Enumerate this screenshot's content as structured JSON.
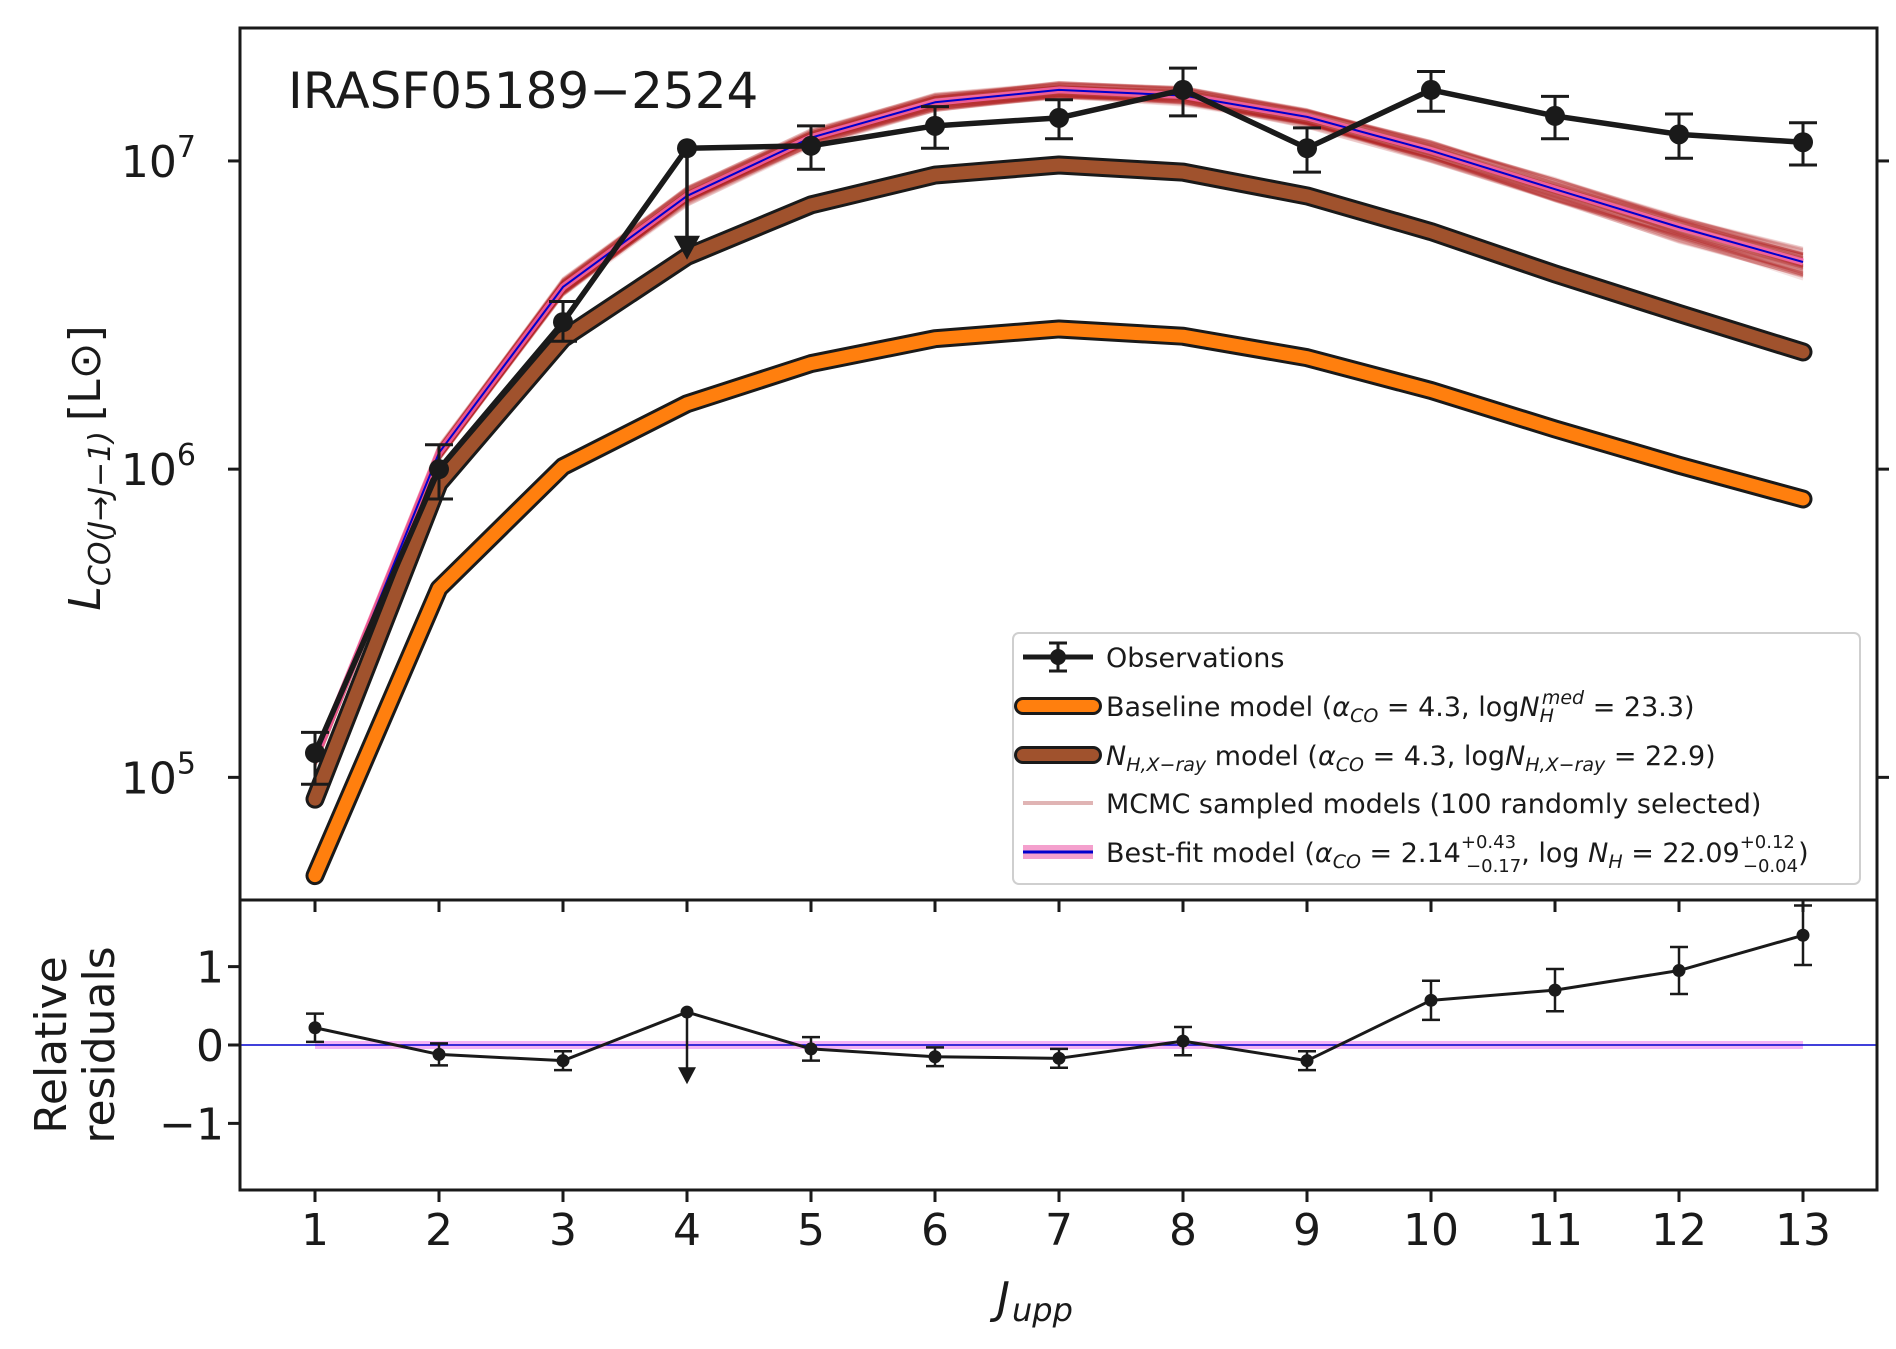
{
  "chart_data": [
    {
      "type": "line",
      "panel": "top",
      "yscale": "log",
      "annotation": "IRASF05189−2524",
      "xlabel": "J",
      "xlabel_sub": "upp",
      "ylabel": "L",
      "ylabel_sub": "CO(J→J−1)",
      "ylabel_unit": "[L⊙]",
      "ylim": [
        40000,
        27000000
      ],
      "yticks": [
        100000,
        1000000,
        10000000
      ],
      "yticks_mantissa": [
        "10",
        "10",
        "10"
      ],
      "yticks_exp": [
        "5",
        "6",
        "7"
      ],
      "x": [
        1,
        2,
        3,
        4,
        5,
        6,
        7,
        8,
        9,
        10,
        11,
        12,
        13
      ],
      "series": [
        {
          "name": "Observations",
          "color": "#1a1a1a",
          "values": [
            120000,
            1000000,
            3000000,
            11000000,
            11200000,
            13000000,
            13800000,
            17000000,
            11000000,
            17000000,
            14000000,
            12200000,
            11500000
          ],
          "err_lo": [
            25000,
            200000,
            400000,
            0,
            1800000,
            2000000,
            2000000,
            3000000,
            1800000,
            2500000,
            2200000,
            2000000,
            1800000
          ],
          "err_hi": [
            20000,
            200000,
            500000,
            0,
            1800000,
            2000000,
            2000000,
            3000000,
            1800000,
            2500000,
            2200000,
            2000000,
            1800000
          ],
          "upper_limit_index": 3,
          "upper_limit_arrow_to": 5000000
        },
        {
          "name": "Baseline model",
          "label_prefix": "Baseline model (",
          "label_alpha": "α",
          "label_alpha_sub": "CO",
          "label_middle": " = 4.3, log",
          "label_n": "N",
          "label_n_sub": "H",
          "label_n_sup": "med",
          "label_suffix": " = 23.3)",
          "color": "#ff7f0e",
          "values": [
            48000,
            410000,
            1020000,
            1630000,
            2200000,
            2650000,
            2850000,
            2700000,
            2300000,
            1800000,
            1350000,
            1030000,
            800000
          ]
        },
        {
          "name": "NH,X-ray model",
          "label_n": "N",
          "label_n_sub": "H,X−ray",
          "label_middle": " model (",
          "label_alpha": "α",
          "label_alpha_sub": "CO",
          "label_mid2": " = 4.3, log",
          "label_n2": "N",
          "label_n2_sub": "H,X−ray",
          "label_suffix": " = 22.9)",
          "color": "#a0522d",
          "values": [
            85000,
            900000,
            2650000,
            4900000,
            7200000,
            9000000,
            9700000,
            9200000,
            7700000,
            5900000,
            4300000,
            3200000,
            2400000
          ]
        },
        {
          "name": "MCMC sampled models (100 randomly selected)",
          "color": "#b22222",
          "values": [
            115000,
            1130000,
            3900000,
            7700000,
            11900000,
            15500000,
            17000000,
            16300000,
            13900000,
            10800000,
            8100000,
            6100000,
            4700000
          ],
          "spread_lo": [
            0.93,
            0.93,
            0.92,
            0.92,
            0.92,
            0.92,
            0.92,
            0.92,
            0.91,
            0.9,
            0.89,
            0.87,
            0.86
          ],
          "spread_hi": [
            1.06,
            1.07,
            1.08,
            1.08,
            1.08,
            1.08,
            1.08,
            1.08,
            1.08,
            1.09,
            1.1,
            1.12,
            1.13
          ]
        },
        {
          "name": "Best-fit model",
          "label_prefix": "Best-fit model (",
          "label_alpha": "α",
          "label_alpha_sub": "CO",
          "label_alpha_val": " = 2.14",
          "label_alpha_sup": "+0.43",
          "label_alpha_sub2": "−0.17",
          "label_middle": ", log ",
          "label_n": "N",
          "label_n_sub": "H",
          "label_n_val": " = 22.09",
          "label_n_sup": "+0.12",
          "label_n_sub2": "−0.04",
          "label_suffix": ")",
          "color": "#0000cd",
          "band_color": "#ff69b4",
          "values": [
            115000,
            1130000,
            3900000,
            7700000,
            11900000,
            15500000,
            17000000,
            16300000,
            13900000,
            10800000,
            8100000,
            6100000,
            4700000
          ]
        }
      ],
      "legend_position": "lower-right"
    },
    {
      "type": "line",
      "panel": "bottom",
      "ylabel_lines": [
        "Relative",
        "residuals"
      ],
      "ylim": [
        -1.85,
        1.85
      ],
      "yticks": [
        1,
        0,
        -1
      ],
      "ytick_labels": [
        "1",
        "0",
        "−1"
      ],
      "xticks": [
        1,
        2,
        3,
        4,
        5,
        6,
        7,
        8,
        9,
        10,
        11,
        12,
        13
      ],
      "xtick_labels": [
        "1",
        "2",
        "3",
        "4",
        "5",
        "6",
        "7",
        "8",
        "9",
        "10",
        "11",
        "12",
        "13"
      ],
      "x": [
        1,
        2,
        3,
        4,
        5,
        6,
        7,
        8,
        9,
        10,
        11,
        12,
        13
      ],
      "values": [
        0.22,
        -0.12,
        -0.2,
        0.42,
        -0.05,
        -0.15,
        -0.17,
        0.05,
        -0.2,
        0.57,
        0.7,
        0.95,
        1.4
      ],
      "err": [
        0.18,
        0.14,
        0.12,
        0,
        0.15,
        0.12,
        0.12,
        0.18,
        0.12,
        0.25,
        0.27,
        0.3,
        0.38
      ],
      "upper_limit_index": 3,
      "upper_limit_arrow_to": -0.45,
      "zero_line_color": "#0000cd",
      "band_color": "#ee82ee"
    }
  ]
}
